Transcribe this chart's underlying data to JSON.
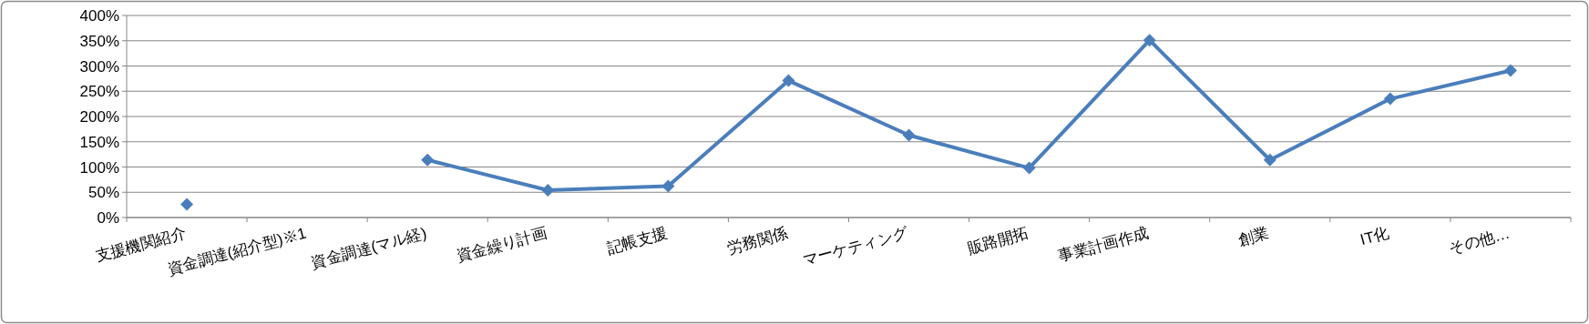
{
  "chart_data": {
    "type": "line",
    "categories": [
      "支援機関紹介",
      "資金調達(紹介型)※1",
      "資金調達(マル経)",
      "資金繰り計画",
      "記帳支援",
      "労務関係",
      "マーケティング",
      "販路開拓",
      "事業計画作成",
      "創業",
      "IT化",
      "その他…"
    ],
    "series": [
      {
        "color": "#4a7ebb",
        "values": [
          26,
          null,
          114,
          54,
          62,
          271,
          163,
          98,
          351,
          114,
          235,
          291
        ]
      }
    ],
    "ylim": [
      0,
      400
    ],
    "yticks": [
      {
        "value": 0,
        "label": "0%"
      },
      {
        "value": 50,
        "label": "50%"
      },
      {
        "value": 100,
        "label": "100%"
      },
      {
        "value": 150,
        "label": "150%"
      },
      {
        "value": 200,
        "label": "200%"
      },
      {
        "value": 250,
        "label": "250%"
      },
      {
        "value": 300,
        "label": "300%"
      },
      {
        "value": 350,
        "label": "350%"
      },
      {
        "value": 400,
        "label": "400%"
      }
    ],
    "grid": "y",
    "marker": "diamond",
    "line_style": "solid"
  }
}
